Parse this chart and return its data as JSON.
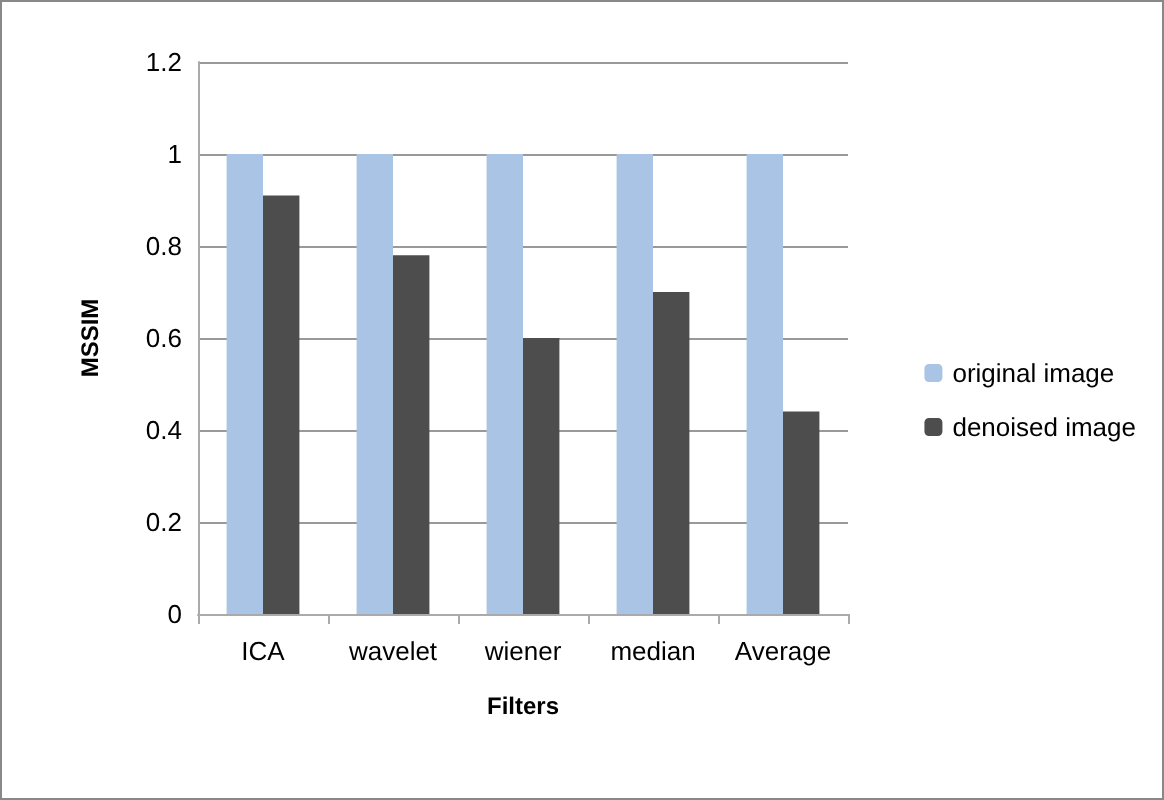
{
  "chart_data": {
    "type": "bar",
    "xlabel": "Filters",
    "ylabel": "MSSIM",
    "categories": [
      "ICA",
      "wavelet",
      "wiener",
      "median",
      "Average"
    ],
    "series": [
      {
        "name": "original image",
        "color": "#a9c4e4",
        "values": [
          1,
          1,
          1,
          1,
          1
        ]
      },
      {
        "name": "denoised image",
        "color": "#4d4d4d",
        "values": [
          0.91,
          0.78,
          0.6,
          0.7,
          0.44
        ]
      }
    ],
    "ylim": [
      0,
      1.2
    ],
    "yticks": [
      0,
      0.2,
      0.4,
      0.6,
      0.8,
      1,
      1.2
    ],
    "grid": "y",
    "legend": "right"
  }
}
